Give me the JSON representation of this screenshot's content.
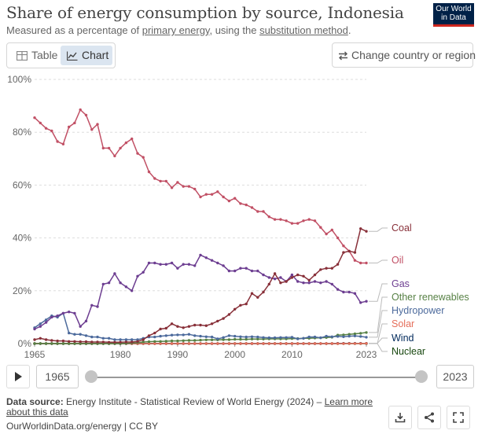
{
  "header": {
    "title": "Share of energy consumption by source, Indonesia",
    "subtitle_pre": "Measured as a percentage of ",
    "subtitle_link1": "primary energy",
    "subtitle_mid": ", using the ",
    "subtitle_link2": "substitution method",
    "subtitle_post": ".",
    "logo_line1": "Our World",
    "logo_line2": "in Data"
  },
  "tabs": {
    "table": "Table",
    "chart": "Chart"
  },
  "change_country_label": "Change country or region",
  "timeline": {
    "start": "1965",
    "end": "2023"
  },
  "footer": {
    "source_label": "Data source:",
    "source_text": " Energy Institute - Statistical Review of World Energy (2024) – ",
    "learn_more_1": "Learn more",
    "learn_more_2": "about this data",
    "url": "OurWorldinData.org/energy | CC BY"
  },
  "icons": {
    "play": "play-icon",
    "download": "download-icon",
    "share": "share-icon",
    "fullscreen": "fullscreen-icon",
    "table": "table-icon",
    "chart": "line-chart-icon",
    "swap": "swap-arrows-icon"
  },
  "chart_data": {
    "type": "line",
    "title": "Share of energy consumption by source, Indonesia",
    "ylabel": "",
    "xlabel": "",
    "xlim": [
      1965,
      2023
    ],
    "ylim": [
      0,
      100
    ],
    "x_ticks": [
      "1965",
      "1980",
      "1990",
      "2000",
      "2010",
      "2023"
    ],
    "y_ticks": [
      "0%",
      "20%",
      "40%",
      "60%",
      "80%",
      "100%"
    ],
    "grid": "horizontal dashed",
    "legend_placement": "right, line-end labels",
    "x": [
      1965,
      1966,
      1967,
      1968,
      1969,
      1970,
      1971,
      1972,
      1973,
      1974,
      1975,
      1976,
      1977,
      1978,
      1979,
      1980,
      1981,
      1982,
      1983,
      1984,
      1985,
      1986,
      1987,
      1988,
      1989,
      1990,
      1991,
      1992,
      1993,
      1994,
      1995,
      1996,
      1997,
      1998,
      1999,
      2000,
      2001,
      2002,
      2003,
      2004,
      2005,
      2006,
      2007,
      2008,
      2009,
      2010,
      2011,
      2012,
      2013,
      2014,
      2015,
      2016,
      2017,
      2018,
      2019,
      2020,
      2021,
      2022,
      2023
    ],
    "series": [
      {
        "name": "Coal",
        "color": "#883039",
        "values": [
          1.5,
          2.0,
          1.5,
          1.2,
          1.0,
          1.0,
          0.8,
          0.8,
          0.7,
          0.7,
          0.6,
          0.6,
          0.6,
          0.5,
          0.5,
          0.5,
          0.6,
          0.6,
          0.8,
          1.5,
          3.0,
          4.0,
          5.5,
          5.8,
          7.5,
          6.5,
          6.0,
          6.5,
          7.0,
          7.0,
          6.8,
          7.5,
          8.5,
          9.5,
          11.0,
          13.0,
          14.5,
          15.0,
          19.0,
          17.5,
          19.5,
          22.5,
          26.5,
          23.0,
          23.5,
          25.0,
          26.0,
          25.5,
          24.0,
          26.0,
          28.0,
          28.5,
          28.5,
          30.0,
          34.5,
          35.0,
          34.5,
          43.5,
          42.5
        ]
      },
      {
        "name": "Oil",
        "color": "#c15065",
        "values": [
          85.5,
          83.5,
          81.5,
          80.5,
          76.5,
          75.5,
          82.0,
          83.5,
          88.5,
          86.5,
          81.0,
          83.0,
          74.0,
          74.0,
          71.0,
          74.0,
          76.0,
          77.5,
          72.0,
          70.5,
          65.0,
          62.5,
          61.5,
          61.5,
          59.0,
          61.0,
          59.5,
          59.5,
          58.5,
          55.5,
          56.5,
          56.5,
          57.5,
          55.5,
          54.0,
          55.0,
          53.0,
          52.5,
          51.5,
          50.0,
          50.0,
          48.0,
          47.0,
          47.0,
          46.5,
          45.5,
          45.5,
          46.5,
          47.0,
          46.5,
          44.0,
          41.5,
          43.0,
          40.0,
          37.0,
          35.0,
          31.5,
          30.5,
          30.5
        ]
      },
      {
        "name": "Gas",
        "color": "#6d3e91",
        "values": [
          5.5,
          6.5,
          8.0,
          10.0,
          10.5,
          11.5,
          12.0,
          11.5,
          6.5,
          8.5,
          14.5,
          14.0,
          22.5,
          23.0,
          26.5,
          23.0,
          21.5,
          20.0,
          25.5,
          27.0,
          30.5,
          30.5,
          30.0,
          30.0,
          30.5,
          28.5,
          30.0,
          30.0,
          29.5,
          33.5,
          32.5,
          31.5,
          30.5,
          29.5,
          27.5,
          27.5,
          28.5,
          28.5,
          27.5,
          27.5,
          26.0,
          25.0,
          24.5,
          25.0,
          23.5,
          26.0,
          23.5,
          23.0,
          23.0,
          23.5,
          23.0,
          23.5,
          22.5,
          20.5,
          19.5,
          19.5,
          19.0,
          15.5,
          16.0
        ]
      },
      {
        "name": "Other renewables",
        "color": "#578145",
        "values": [
          0,
          0,
          0,
          0,
          0,
          0,
          0,
          0,
          0,
          0,
          0,
          0,
          0,
          0,
          0,
          0,
          0.1,
          0.2,
          0.4,
          0.6,
          0.7,
          0.8,
          0.8,
          0.9,
          1.0,
          1.0,
          1.1,
          1.2,
          1.2,
          1.3,
          1.4,
          1.4,
          1.4,
          1.5,
          1.5,
          1.6,
          1.6,
          1.6,
          1.7,
          1.7,
          1.7,
          1.8,
          1.8,
          1.8,
          1.8,
          1.9,
          1.9,
          2.0,
          2.0,
          2.1,
          2.2,
          2.3,
          2.4,
          3.2,
          3.3,
          3.5,
          3.7,
          3.9,
          4.2
        ]
      },
      {
        "name": "Hydropower",
        "color": "#4c6a9c",
        "values": [
          6.0,
          7.5,
          9.0,
          10.5,
          10.0,
          11.5,
          4.0,
          3.5,
          3.5,
          3.0,
          2.5,
          2.5,
          2.0,
          2.0,
          1.5,
          1.5,
          1.5,
          1.5,
          1.5,
          2.0,
          2.5,
          2.5,
          2.8,
          3.0,
          3.2,
          3.3,
          3.3,
          3.5,
          3.0,
          2.8,
          2.6,
          2.5,
          1.8,
          2.3,
          3.0,
          2.8,
          2.6,
          2.5,
          2.6,
          2.5,
          2.3,
          2.2,
          2.2,
          2.3,
          2.3,
          2.4,
          1.8,
          2.0,
          2.5,
          2.5,
          2.2,
          2.8,
          2.6,
          2.7,
          2.6,
          2.8,
          2.9,
          2.7,
          2.4
        ]
      },
      {
        "name": "Solar",
        "color": "#e56e5a",
        "values": [
          0,
          0,
          0,
          0,
          0,
          0,
          0,
          0,
          0,
          0,
          0,
          0,
          0,
          0,
          0,
          0,
          0,
          0,
          0,
          0,
          0,
          0,
          0,
          0,
          0,
          0,
          0,
          0,
          0,
          0,
          0,
          0,
          0,
          0,
          0,
          0,
          0,
          0,
          0,
          0,
          0,
          0,
          0,
          0,
          0,
          0,
          0,
          0,
          0,
          0,
          0,
          0,
          0,
          0,
          0.01,
          0.02,
          0.03,
          0.04,
          0.05
        ]
      },
      {
        "name": "Wind",
        "color": "#00295b",
        "values": [
          0,
          0,
          0,
          0,
          0,
          0,
          0,
          0,
          0,
          0,
          0,
          0,
          0,
          0,
          0,
          0,
          0,
          0,
          0,
          0,
          0,
          0,
          0,
          0,
          0,
          0,
          0,
          0,
          0,
          0,
          0,
          0,
          0,
          0,
          0,
          0,
          0,
          0,
          0,
          0,
          0,
          0,
          0,
          0,
          0,
          0,
          0,
          0,
          0,
          0,
          0,
          0,
          0,
          0.1,
          0.1,
          0.1,
          0.1,
          0.1,
          0.1
        ]
      },
      {
        "name": "Nuclear",
        "color": "#18470f",
        "values": [
          0,
          0,
          0,
          0,
          0,
          0,
          0,
          0,
          0,
          0,
          0,
          0,
          0,
          0,
          0,
          0,
          0,
          0,
          0,
          0,
          0,
          0,
          0,
          0,
          0,
          0,
          0,
          0,
          0,
          0,
          0,
          0,
          0,
          0,
          0,
          0,
          0,
          0,
          0,
          0,
          0,
          0,
          0,
          0,
          0,
          0,
          0,
          0,
          0,
          0,
          0,
          0,
          0,
          0,
          0,
          0,
          0,
          0,
          0
        ]
      }
    ]
  }
}
